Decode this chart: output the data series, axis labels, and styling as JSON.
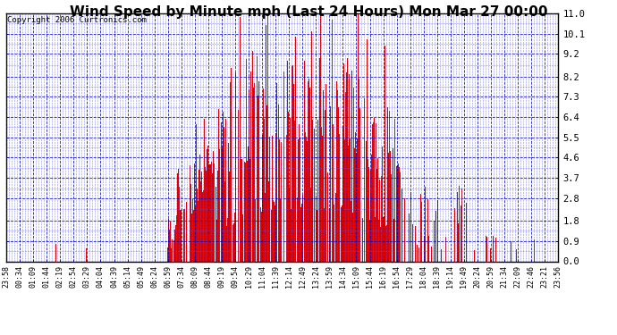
{
  "title": "Wind Speed by Minute mph (Last 24 Hours) Mon Mar 27 00:00",
  "copyright": "Copyright 2006 Curtronics.com",
  "ylabel_right": [
    "0.0",
    "0.9",
    "1.8",
    "2.8",
    "3.7",
    "4.6",
    "5.5",
    "6.4",
    "7.3",
    "8.2",
    "9.2",
    "10.1",
    "11.0"
  ],
  "yticks": [
    0.0,
    0.9,
    1.8,
    2.8,
    3.7,
    4.6,
    5.5,
    6.4,
    7.3,
    8.2,
    9.2,
    10.1,
    11.0
  ],
  "ylim": [
    0.0,
    11.0
  ],
  "background_color": "#ffffff",
  "bar_color": "#dd0000",
  "grid_color_major": "#0000cc",
  "grid_color_minor": "#5555ff",
  "border_color": "#000000",
  "title_fontsize": 11,
  "copyright_fontsize": 6.5,
  "xtick_labels": [
    "23:58",
    "00:34",
    "01:09",
    "01:44",
    "02:19",
    "02:54",
    "03:29",
    "04:04",
    "04:39",
    "05:14",
    "05:49",
    "06:24",
    "06:59",
    "07:34",
    "08:09",
    "08:44",
    "09:19",
    "09:54",
    "10:29",
    "11:04",
    "11:39",
    "12:14",
    "12:49",
    "13:24",
    "13:59",
    "14:34",
    "15:09",
    "15:44",
    "16:19",
    "16:54",
    "17:29",
    "18:04",
    "18:39",
    "19:14",
    "19:49",
    "20:24",
    "20:59",
    "21:34",
    "22:09",
    "22:46",
    "23:21",
    "23:56"
  ],
  "num_bars": 1440,
  "seed": 42
}
